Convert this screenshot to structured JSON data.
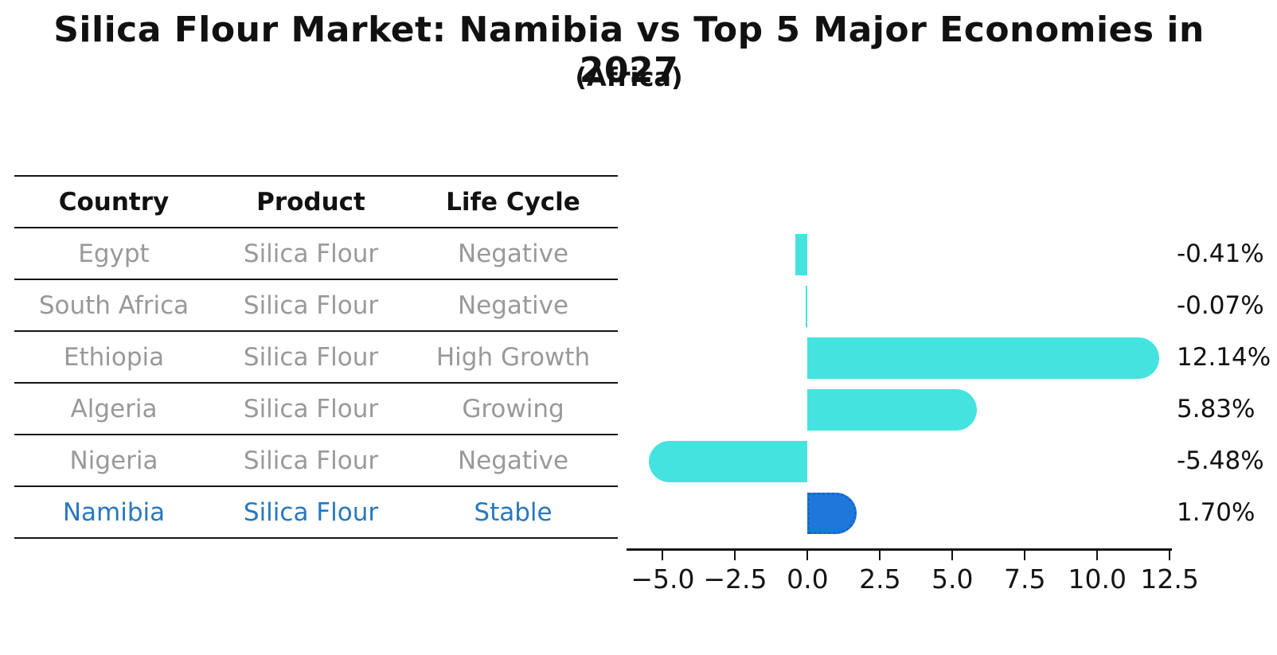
{
  "table": {
    "headers": [
      "Country",
      "Product",
      "Life Cycle"
    ],
    "rows": [
      {
        "country": "Egypt",
        "product": "Silica Flour",
        "life_cycle": "Negative",
        "highlighted": false
      },
      {
        "country": "South Africa",
        "product": "Silica Flour",
        "life_cycle": "Negative",
        "highlighted": false
      },
      {
        "country": "Ethiopia",
        "product": "Silica Flour",
        "life_cycle": "High Growth",
        "highlighted": false
      },
      {
        "country": "Algeria",
        "product": "Silica Flour",
        "life_cycle": "Growing",
        "highlighted": false
      },
      {
        "country": "Nigeria",
        "product": "Silica Flour",
        "life_cycle": "Negative",
        "highlighted": false
      },
      {
        "country": "Namibia",
        "product": "Silica Flour",
        "life_cycle": "Stable",
        "highlighted": true
      }
    ]
  },
  "chart_data": {
    "type": "bar",
    "orientation": "horizontal",
    "title": "Silica Flour Market: Namibia vs Top 5 Major Economies in 2027",
    "subtitle": "(Africa)",
    "categories": [
      "Egypt",
      "South Africa",
      "Ethiopia",
      "Algeria",
      "Nigeria",
      "Namibia"
    ],
    "values": [
      -0.41,
      -0.07,
      12.14,
      5.83,
      -5.48,
      1.7
    ],
    "value_labels": [
      "-0.41%",
      "-0.07%",
      "12.14%",
      "5.83%",
      "-5.48%",
      "1.70%"
    ],
    "xlabel": "",
    "ylabel": "",
    "xlim": [
      -6.25,
      12.55
    ],
    "x_ticks": [
      -5.0,
      -2.5,
      0.0,
      2.5,
      5.0,
      7.5,
      10.0,
      12.5
    ],
    "x_tick_labels": [
      "−5.0",
      "−2.5",
      "0.0",
      "2.5",
      "5.0",
      "7.5",
      "10.0",
      "12.5"
    ],
    "grid": false,
    "legend": false,
    "highlight_index": 5,
    "colors": {
      "bar": "#44E3E0",
      "highlight_bar": "#1E78DB",
      "highlight_edge": "#1765CB",
      "highlight_text": "#2878BE",
      "muted_text": "#999999",
      "axis": "#141414"
    }
  }
}
